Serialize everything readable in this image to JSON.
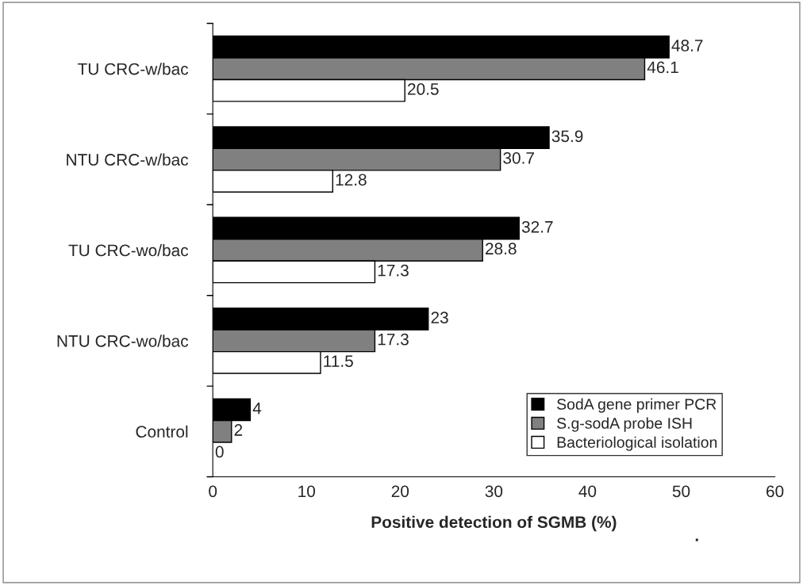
{
  "chart_data": {
    "type": "bar",
    "orientation": "horizontal",
    "xlabel": "Positive detection of SGMB (%)",
    "categories": [
      "TU CRC-w/bac",
      "NTU CRC-w/bac",
      "TU CRC-wo/bac",
      "NTU CRC-wo/bac",
      "Control"
    ],
    "series": [
      {
        "name": "SodA gene primer PCR",
        "color": "#000000",
        "values": [
          48.7,
          35.9,
          32.7,
          23,
          4
        ]
      },
      {
        "name": "S.g-sodA probe ISH",
        "color": "#808080",
        "values": [
          46.1,
          30.7,
          28.8,
          17.3,
          2
        ]
      },
      {
        "name": "Bacteriological isolation",
        "color": "#ffffff",
        "values": [
          20.5,
          12.8,
          17.3,
          11.5,
          0
        ]
      }
    ],
    "xlim": [
      0,
      60
    ],
    "xticks": [
      0,
      10,
      20,
      30,
      40,
      50,
      60
    ],
    "data_labels": true,
    "legend": "bottom right",
    "grid": false,
    "annotations": [
      {
        "text": "."
      }
    ]
  }
}
